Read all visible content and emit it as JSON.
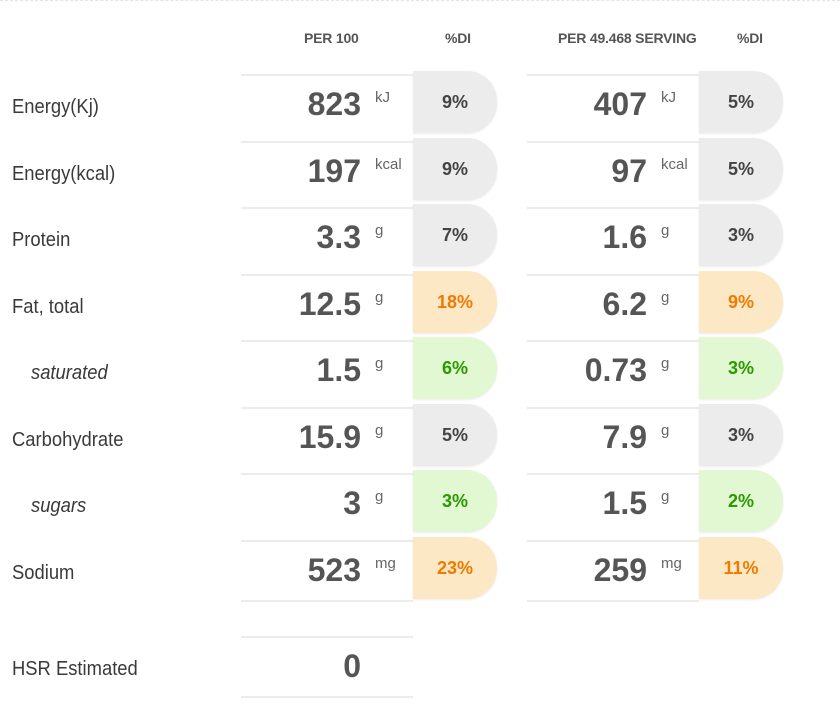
{
  "headers": {
    "per100": "PER 100",
    "di1": "%DI",
    "perServing": "PER 49.468 SERVING",
    "di2": "%DI"
  },
  "rows": [
    {
      "label": "Energy(Kj)",
      "sub": false,
      "v100": "823",
      "u100": "kJ",
      "di100": "9%",
      "c100": "grey",
      "vServ": "407",
      "uServ": "kJ",
      "diServ": "5%",
      "cServ": "grey"
    },
    {
      "label": "Energy(kcal)",
      "sub": false,
      "v100": "197",
      "u100": "kcal",
      "di100": "9%",
      "c100": "grey",
      "vServ": "97",
      "uServ": "kcal",
      "diServ": "5%",
      "cServ": "grey"
    },
    {
      "label": "Protein",
      "sub": false,
      "v100": "3.3",
      "u100": "g",
      "di100": "7%",
      "c100": "grey",
      "vServ": "1.6",
      "uServ": "g",
      "diServ": "3%",
      "cServ": "grey"
    },
    {
      "label": "Fat, total",
      "sub": false,
      "v100": "12.5",
      "u100": "g",
      "di100": "18%",
      "c100": "orange",
      "vServ": "6.2",
      "uServ": "g",
      "diServ": "9%",
      "cServ": "orange"
    },
    {
      "label": "saturated",
      "sub": true,
      "v100": "1.5",
      "u100": "g",
      "di100": "6%",
      "c100": "green",
      "vServ": "0.73",
      "uServ": "g",
      "diServ": "3%",
      "cServ": "green"
    },
    {
      "label": "Carbohydrate",
      "sub": false,
      "v100": "15.9",
      "u100": "g",
      "di100": "5%",
      "c100": "grey",
      "vServ": "7.9",
      "uServ": "g",
      "diServ": "3%",
      "cServ": "grey"
    },
    {
      "label": "sugars",
      "sub": true,
      "v100": "3",
      "u100": "g",
      "di100": "3%",
      "c100": "green",
      "vServ": "1.5",
      "uServ": "g",
      "diServ": "2%",
      "cServ": "green"
    },
    {
      "label": "Sodium",
      "sub": false,
      "v100": "523",
      "u100": "mg",
      "di100": "23%",
      "c100": "orange",
      "vServ": "259",
      "uServ": "mg",
      "diServ": "11%",
      "cServ": "orange"
    }
  ],
  "hsr": {
    "label": "HSR Estimated",
    "value": "0"
  },
  "colors": {
    "grey": "#ececec",
    "orange": "#fde8c6",
    "orangeText": "#f07a00",
    "green": "#e1f8d2",
    "greenText": "#2b9a00"
  }
}
